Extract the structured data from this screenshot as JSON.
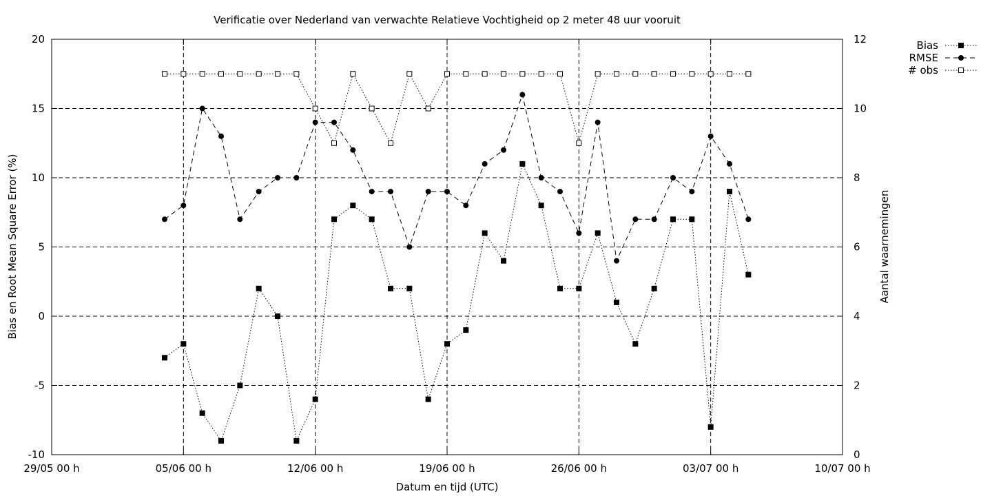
{
  "chart_data": {
    "type": "line",
    "title": "Verificatie over Nederland van verwachte Relatieve Vochtigheid op 2 meter 48 uur vooruit",
    "xlabel": "Datum en tijd (UTC)",
    "ylabel": "Bias en Root Mean Square Error (%)",
    "y2label": "Aantal waarnemingen",
    "x_ticks": [
      "29/05 00 h",
      "05/06 00 h",
      "12/06 00 h",
      "19/06 00 h",
      "26/06 00 h",
      "03/07 00 h",
      "10/07 00 h"
    ],
    "xlim": [
      "2006-05-29",
      "2006-07-10"
    ],
    "ylim": [
      -10,
      20
    ],
    "y_ticks": [
      -10,
      -5,
      0,
      5,
      10,
      15,
      20
    ],
    "y2lim": [
      0,
      12
    ],
    "y2_ticks": [
      0,
      2,
      4,
      6,
      8,
      10,
      12
    ],
    "grid": true,
    "legend_position": "top-right",
    "x": [
      "2006-06-04",
      "2006-06-05",
      "2006-06-06",
      "2006-06-07",
      "2006-06-08",
      "2006-06-09",
      "2006-06-10",
      "2006-06-11",
      "2006-06-12",
      "2006-06-13",
      "2006-06-14",
      "2006-06-15",
      "2006-06-16",
      "2006-06-17",
      "2006-06-18",
      "2006-06-19",
      "2006-06-20",
      "2006-06-21",
      "2006-06-22",
      "2006-06-23",
      "2006-06-24",
      "2006-06-25",
      "2006-06-26",
      "2006-06-27",
      "2006-06-28",
      "2006-06-29",
      "2006-06-30",
      "2006-07-01",
      "2006-07-02",
      "2006-07-03",
      "2006-07-04",
      "2006-07-05"
    ],
    "series": [
      {
        "name": "Bias",
        "axis": "y",
        "marker": "filled-square",
        "dash": "dotted",
        "values": [
          -3,
          -2,
          -7,
          -9,
          -5,
          2,
          0,
          -9,
          -6,
          7,
          8,
          7,
          2,
          2,
          -6,
          -2,
          -1,
          6,
          4,
          11,
          8,
          2,
          2,
          6,
          1,
          -2,
          2,
          7,
          7,
          -8,
          9,
          3
        ]
      },
      {
        "name": "RMSE",
        "axis": "y",
        "marker": "filled-circle",
        "dash": "dashed",
        "values": [
          7,
          8,
          15,
          13,
          7,
          9,
          10,
          10,
          14,
          14,
          12,
          9,
          9,
          5,
          9,
          9,
          8,
          11,
          12,
          16,
          10,
          9,
          6,
          14,
          4,
          7,
          7,
          10,
          9,
          13,
          11,
          7
        ]
      },
      {
        "name": "# obs",
        "axis": "y2",
        "marker": "open-square",
        "dash": "dotted",
        "values": [
          11,
          11,
          11,
          11,
          11,
          11,
          11,
          11,
          10,
          9,
          11,
          10,
          9,
          11,
          10,
          11,
          11,
          11,
          11,
          11,
          11,
          11,
          9,
          11,
          11,
          11,
          11,
          11,
          11,
          11,
          11,
          11
        ]
      }
    ]
  }
}
